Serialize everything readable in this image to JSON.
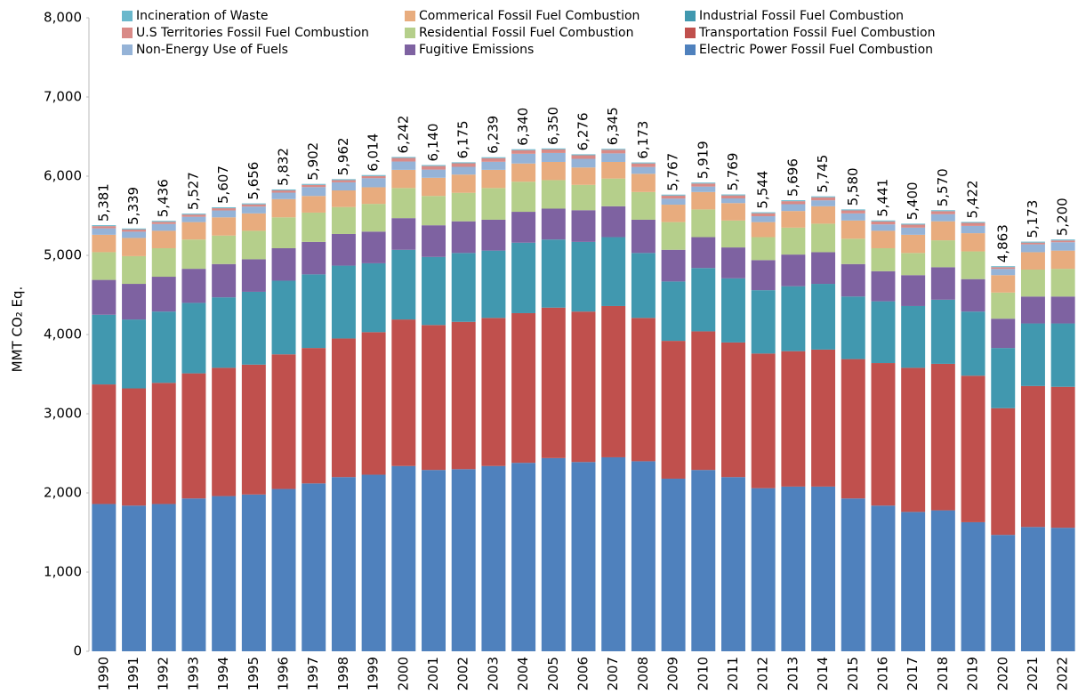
{
  "chart_data": {
    "type": "stacked_bar",
    "y_label": "MMT CO₂ Eq.",
    "categories": [
      "1990",
      "1991",
      "1992",
      "1993",
      "1994",
      "1995",
      "1996",
      "1997",
      "1998",
      "1999",
      "2000",
      "2001",
      "2002",
      "2003",
      "2004",
      "2005",
      "2006",
      "2007",
      "2008",
      "2009",
      "2010",
      "2011",
      "2012",
      "2013",
      "2014",
      "2015",
      "2016",
      "2017",
      "2018",
      "2019",
      "2020",
      "2021",
      "2022"
    ],
    "ylim": [
      0,
      8000
    ],
    "yticks": [
      0,
      {
        "value": 1000,
        "label": "1,000"
      },
      {
        "value": 2000,
        "label": "2,000"
      },
      {
        "value": 3000,
        "label": "3,000"
      },
      {
        "value": 4000,
        "label": "4,000"
      },
      {
        "value": 5000,
        "label": "5,000"
      },
      {
        "value": 6000,
        "label": "6,000"
      },
      {
        "value": 7000,
        "label": "7,000"
      },
      {
        "value": 8000,
        "label": "8,000"
      }
    ],
    "grid": false,
    "legend": "top",
    "series": [
      {
        "name": "Electric Power Fossil Fuel Combustion",
        "color": "#4f81bd",
        "values": [
          1860,
          1840,
          1860,
          1930,
          1960,
          1980,
          2050,
          2120,
          2200,
          2230,
          2340,
          2290,
          2300,
          2340,
          2380,
          2440,
          2390,
          2450,
          2400,
          2180,
          2290,
          2200,
          2060,
          2080,
          2080,
          1930,
          1840,
          1760,
          1780,
          1630,
          1470,
          1570,
          1560
        ]
      },
      {
        "name": "Transportation Fossil Fuel Combustion",
        "color": "#c0504d",
        "values": [
          1510,
          1480,
          1530,
          1580,
          1620,
          1640,
          1700,
          1710,
          1750,
          1800,
          1850,
          1830,
          1860,
          1870,
          1890,
          1900,
          1900,
          1910,
          1810,
          1740,
          1750,
          1700,
          1700,
          1710,
          1730,
          1760,
          1800,
          1820,
          1850,
          1850,
          1600,
          1780,
          1780
        ]
      },
      {
        "name": "Industrial Fossil Fuel Combustion",
        "color": "#4198af",
        "values": [
          880,
          870,
          900,
          890,
          890,
          920,
          930,
          930,
          920,
          870,
          880,
          860,
          870,
          850,
          890,
          860,
          880,
          870,
          820,
          750,
          800,
          810,
          800,
          820,
          830,
          790,
          780,
          780,
          810,
          810,
          760,
          790,
          800
        ]
      },
      {
        "name": "Fugitive Emissions",
        "color": "#7e62a1",
        "values": [
          440,
          450,
          440,
          430,
          420,
          410,
          410,
          410,
          400,
          400,
          400,
          400,
          400,
          390,
          390,
          390,
          400,
          390,
          420,
          400,
          390,
          390,
          380,
          400,
          400,
          410,
          380,
          390,
          410,
          410,
          370,
          340,
          340
        ]
      },
      {
        "name": "Residential Fossil Fuel Combustion",
        "color": "#b5cf8b",
        "values": [
          350,
          350,
          360,
          370,
          360,
          360,
          390,
          370,
          340,
          350,
          380,
          370,
          360,
          400,
          380,
          360,
          320,
          350,
          350,
          350,
          350,
          340,
          290,
          340,
          360,
          320,
          290,
          280,
          340,
          350,
          330,
          340,
          350
        ]
      },
      {
        "name": "Commerical Fossil Fuel Combustion",
        "color": "#e8ac7e",
        "values": [
          220,
          230,
          220,
          220,
          230,
          220,
          230,
          210,
          210,
          210,
          230,
          230,
          230,
          230,
          230,
          230,
          220,
          210,
          230,
          220,
          220,
          220,
          190,
          210,
          220,
          230,
          220,
          230,
          240,
          230,
          220,
          220,
          230
        ]
      },
      {
        "name": "Non-Energy Use of Fuels",
        "color": "#95b3d7",
        "values": [
          81,
          79,
          86,
          67,
          87,
          86,
          82,
          112,
          102,
          114,
          105,
          103,
          98,
          102,
          123,
          113,
          109,
          108,
          86,
          77,
          69,
          59,
          74,
          86,
          75,
          90,
          81,
          90,
          90,
          92,
          79,
          99,
          106
        ]
      },
      {
        "name": "U.S Territories Fossil Fuel Combustion",
        "color": "#d98a87",
        "values": [
          28,
          28,
          28,
          28,
          28,
          28,
          28,
          28,
          28,
          28,
          45,
          45,
          45,
          45,
          45,
          45,
          45,
          45,
          45,
          38,
          38,
          38,
          38,
          38,
          38,
          38,
          38,
          38,
          38,
          38,
          22,
          22,
          22
        ]
      },
      {
        "name": "Incineration of Waste",
        "color": "#6ab8cc",
        "values": [
          12,
          12,
          12,
          12,
          12,
          12,
          12,
          12,
          12,
          12,
          12,
          12,
          12,
          12,
          12,
          12,
          12,
          12,
          12,
          12,
          12,
          12,
          12,
          12,
          12,
          12,
          12,
          12,
          12,
          12,
          12,
          12,
          12
        ]
      }
    ],
    "totals": {
      "values": [
        5381,
        5339,
        5436,
        5527,
        5607,
        5656,
        5832,
        5902,
        5962,
        6014,
        6242,
        6140,
        6175,
        6239,
        6340,
        6350,
        6276,
        6345,
        6173,
        5767,
        5919,
        5769,
        5544,
        5696,
        5745,
        5580,
        5441,
        5400,
        5570,
        5422,
        4863,
        5173,
        5200
      ],
      "value_labels": [
        "5,381",
        "5,339",
        "5,436",
        "5,527",
        "5,607",
        "5,656",
        "5,832",
        "5,902",
        "5,962",
        "6,014",
        "6,242",
        "6,140",
        "6,175",
        "6,239",
        "6,340",
        "6,350",
        "6,276",
        "6,345",
        "6,173",
        "5,767",
        "5,919",
        "5,769",
        "5,544",
        "5,696",
        "5,745",
        "5,580",
        "5,441",
        "5,400",
        "5,570",
        "5,422",
        "4,863",
        "5,173",
        "5,200"
      ]
    }
  }
}
